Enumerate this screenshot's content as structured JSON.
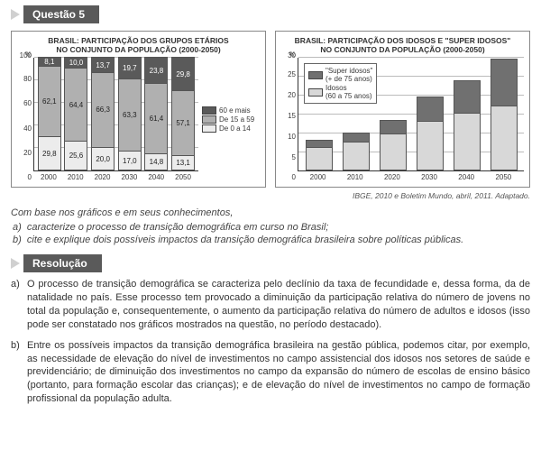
{
  "question_label": "Questão 5",
  "chart1": {
    "title_l1": "BRASIL: PARTICIPAÇÃO DOS GRUPOS ETÁRIOS",
    "title_l2": "NO CONJUNTO DA POPULAÇÃO (2000-2050)",
    "y_unit": "%",
    "ymax": 100,
    "ytick_step": 20,
    "yticks": [
      "0",
      "20",
      "40",
      "60",
      "80",
      "100"
    ],
    "years": [
      "2000",
      "2010",
      "2020",
      "2030",
      "2040",
      "2050"
    ],
    "series_60mais": [
      8.1,
      10.0,
      13.7,
      19.7,
      23.8,
      29.8
    ],
    "series_15a59": [
      62.1,
      64.4,
      66.3,
      63.3,
      61.4,
      57.1
    ],
    "series_0a14": [
      29.8,
      25.6,
      20.0,
      17.0,
      14.8,
      13.1
    ],
    "labels_60": [
      "8,1",
      "10,0",
      "13,7",
      "19,7",
      "23,8",
      "29,8"
    ],
    "labels_15": [
      "62,1",
      "64,4",
      "66,3",
      "63,3",
      "61,4",
      "57,1"
    ],
    "labels_0": [
      "29,8",
      "25,6",
      "20,0",
      "17,0",
      "14,8",
      "13,1"
    ],
    "colors": {
      "60mais": "#5a5a5a",
      "15a59": "#b0b0b0",
      "0a14": "#ececec"
    },
    "legend": {
      "a": "60 e mais",
      "b": "De 15 a 59",
      "c": "De 0 a 14"
    }
  },
  "chart2": {
    "title_l1": "BRASIL: PARTICIPAÇÃO DOS IDOSOS E \"SUPER IDOSOS\"",
    "title_l2": "NO CONJUNTO DA POPULAÇÃO (2000-2050)",
    "y_unit": "%",
    "ymax": 30,
    "ytick_step": 5,
    "yticks": [
      "0",
      "5",
      "10",
      "15",
      "20",
      "25",
      "30"
    ],
    "years": [
      "2000",
      "2010",
      "2020",
      "2030",
      "2040",
      "2050"
    ],
    "series_idosos": [
      6.0,
      7.5,
      9.5,
      13.0,
      15.0,
      17.0
    ],
    "series_super": [
      2.3,
      2.5,
      4.0,
      6.5,
      9.0,
      12.5
    ],
    "colors": {
      "super": "#707070",
      "idosos": "#d8d8d8"
    },
    "legend": {
      "super_l1": "\"Super idosos\"",
      "super_l2": "(+ de 75 anos)",
      "idosos_l1": "Idosos",
      "idosos_l2": "(60 a 75 anos)"
    }
  },
  "source": "IBGE, 2010 e Boletim Mundo, abril, 2011. Adaptado.",
  "prompt": "Com base nos gráficos e em seus conhecimentos,",
  "item_a_lbl": "a)",
  "item_a": "caracterize o processo de transição demográfica em curso no Brasil;",
  "item_b_lbl": "b)",
  "item_b": "cite e explique dois possíveis impactos da transição demográfica brasileira sobre políticas públicas.",
  "resolution_label": "Resolução",
  "answer_a_lbl": "a)",
  "answer_a": "O processo de transição demográfica se caracteriza pelo declínio da taxa de fecundidade e, dessa forma, da de natalidade no país. Esse processo tem provocado a diminuição da participação relativa do número de jovens no total da população e, consequentemente, o aumento da participação relativa do número de adultos e idosos (isso pode ser constatado nos gráficos mostrados na questão, no período destacado).",
  "answer_b_lbl": "b)",
  "answer_b": "Entre os possíveis impactos da transição demográfica brasileira na gestão pública, podemos citar, por exemplo, as necessidade de elevação do nível de investimentos no campo assistencial dos idosos nos setores de saúde e previdenciário; de diminuição dos investimentos no campo da expansão do número de escolas de ensino básico (portanto, para formação escolar das crianças); e de elevação do nível de investimentos no campo de formação profissional da população adulta."
}
